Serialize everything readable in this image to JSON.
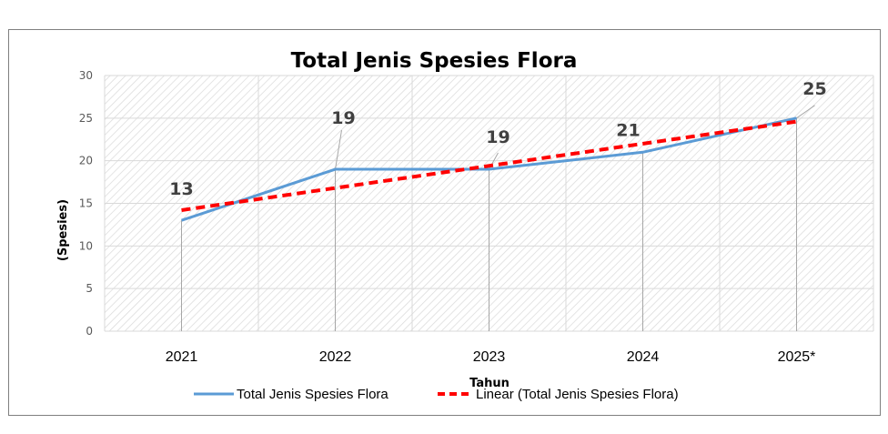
{
  "chart_data": {
    "type": "line",
    "title": "Total Jenis Spesies Flora",
    "xlabel": "Tahun",
    "ylabel": "(Spesies)",
    "categories": [
      "2021",
      "2022",
      "2023",
      "2024",
      "2025*"
    ],
    "ylim": [
      0,
      30
    ],
    "yticks": [
      0,
      5,
      10,
      15,
      20,
      25,
      30
    ],
    "grid": true,
    "legend_position": "bottom",
    "series": [
      {
        "name": "Total Jenis Spesies Flora",
        "values": [
          13,
          19,
          19,
          21,
          25
        ],
        "color": "#5b9bd5",
        "data_labels": [
          "13",
          "19",
          "19",
          "21",
          "25"
        ]
      }
    ],
    "trendline": {
      "name": "Linear (Total Jenis Spesies Flora)",
      "type": "linear",
      "values": [
        14.2,
        16.8,
        19.4,
        22.0,
        24.6
      ],
      "color": "#ff0000"
    }
  }
}
